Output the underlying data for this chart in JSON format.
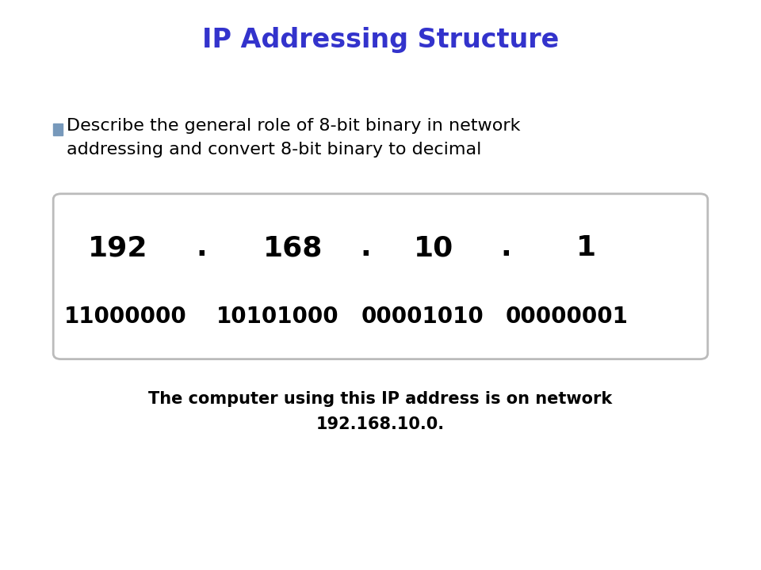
{
  "title": "IP Addressing Structure",
  "title_color": "#3333cc",
  "title_fontsize": 24,
  "bullet_color": "#7799bb",
  "bullet_text_line1": "Describe the general role of 8-bit binary in network",
  "bullet_text_line2": "addressing and convert 8-bit binary to decimal",
  "bullet_fontsize": 16,
  "decimal_row": [
    "192",
    ".",
    "168",
    ".",
    "10",
    ".",
    "1"
  ],
  "decimal_fontsize": 26,
  "binary_row": [
    "11000000",
    "10101000",
    "00001010",
    "00000001"
  ],
  "binary_fontsize": 20,
  "box_edgecolor": "#bbbbbb",
  "box_facecolor": "#ffffff",
  "caption_line1": "The computer using this IP address is on network",
  "caption_line2": "192.168.10.0.",
  "caption_fontsize": 15,
  "background_color": "#ffffff"
}
